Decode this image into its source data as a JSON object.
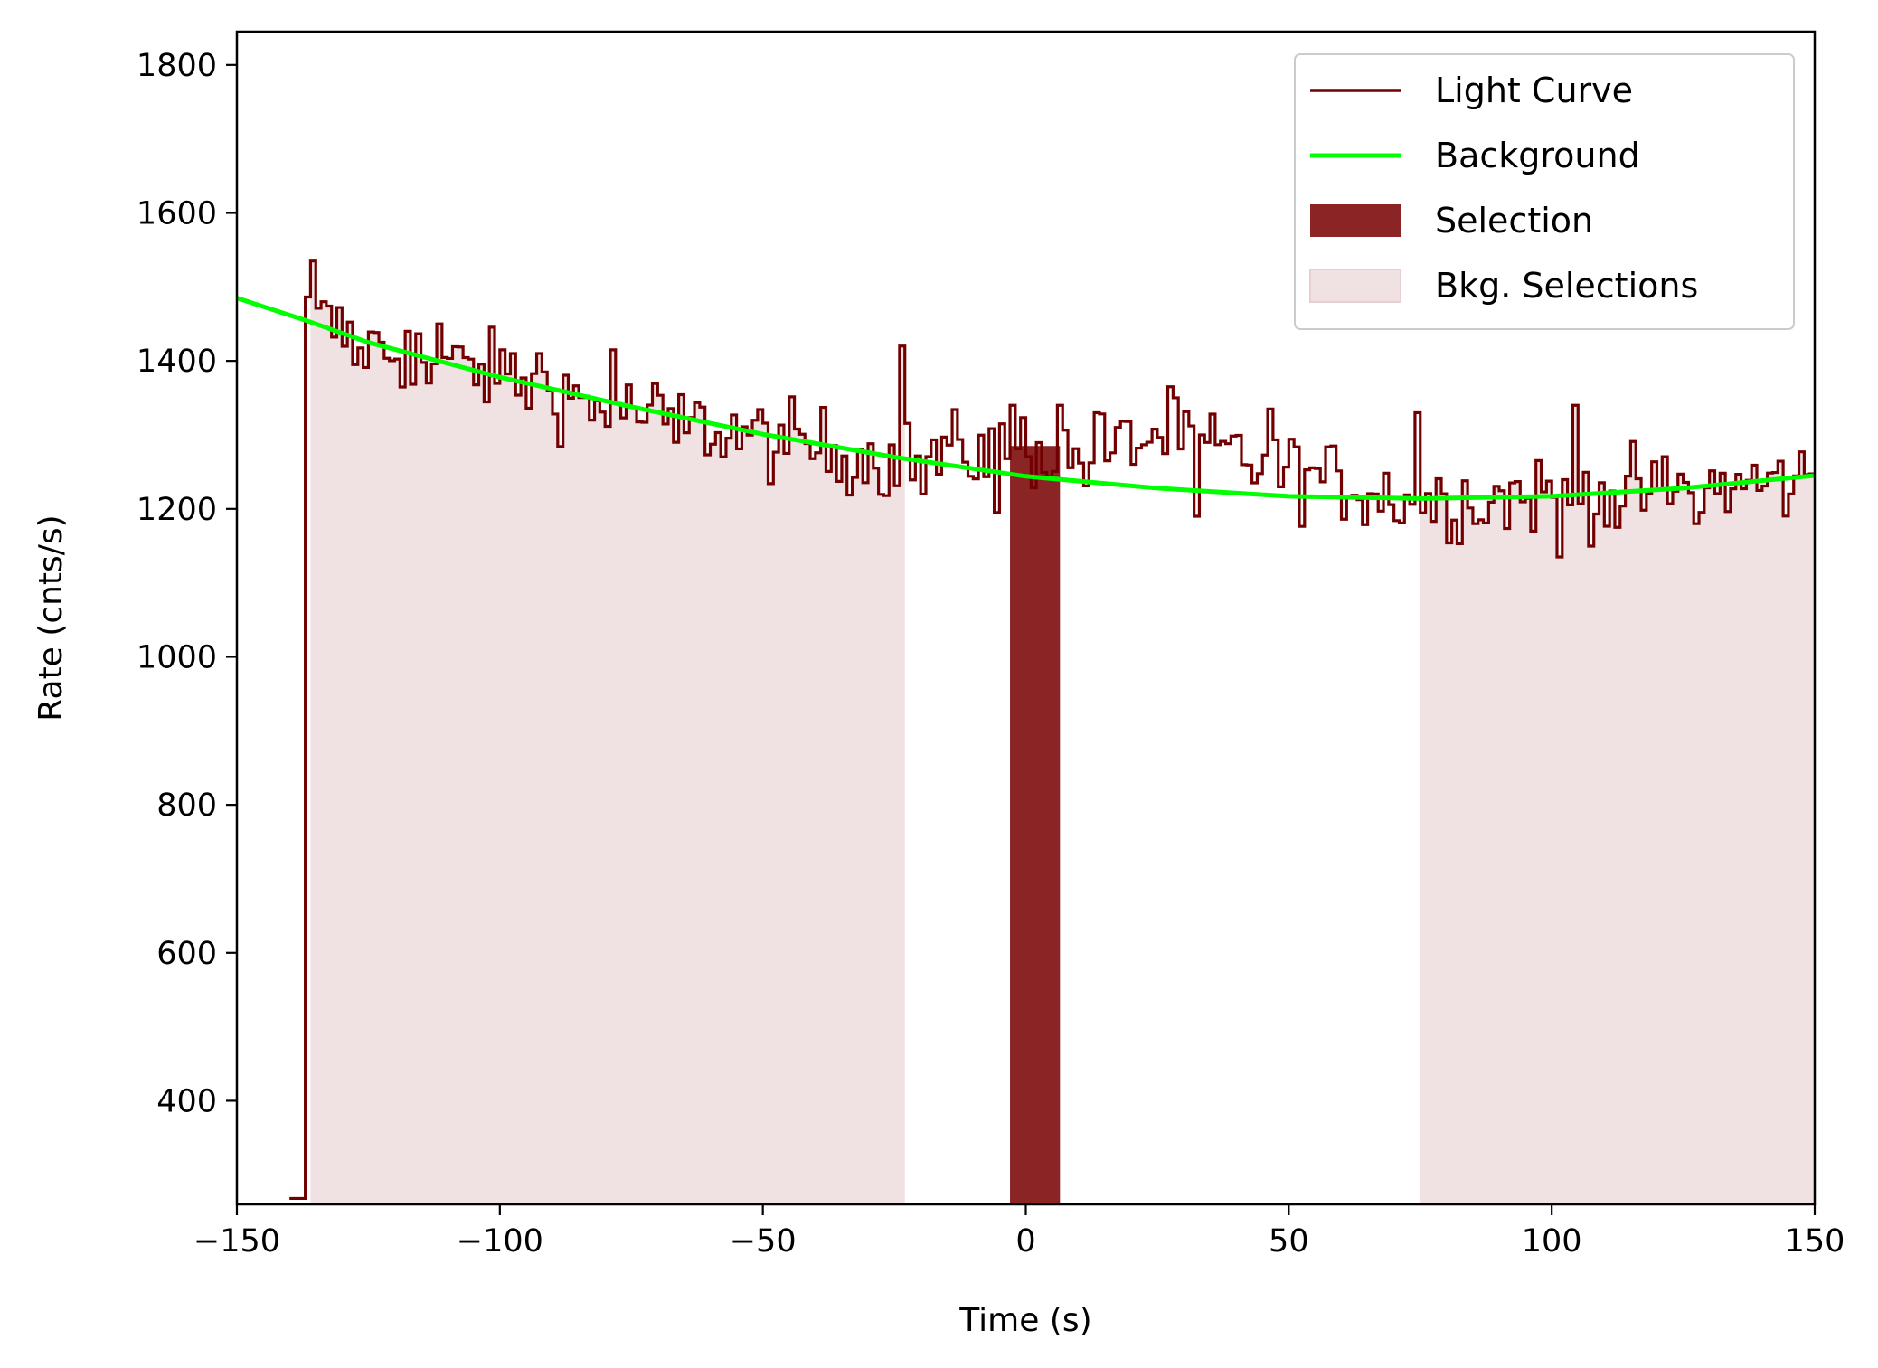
{
  "chart_data": {
    "type": "line",
    "title": "",
    "xlabel": "Time (s)",
    "ylabel": "Rate (cnts/s)",
    "xlim": [
      -150,
      150
    ],
    "ylim": [
      260,
      1845
    ],
    "xticks": [
      {
        "value": -150,
        "label": "−150"
      },
      {
        "value": -100,
        "label": "−100"
      },
      {
        "value": -50,
        "label": "−50"
      },
      {
        "value": 0,
        "label": "0"
      },
      {
        "value": 50,
        "label": "50"
      },
      {
        "value": 100,
        "label": "100"
      },
      {
        "value": 150,
        "label": "150"
      }
    ],
    "yticks": [
      {
        "value": 400,
        "label": "400"
      },
      {
        "value": 600,
        "label": "600"
      },
      {
        "value": 800,
        "label": "800"
      },
      {
        "value": 1000,
        "label": "1000"
      },
      {
        "value": 1200,
        "label": "1200"
      },
      {
        "value": 1400,
        "label": "1400"
      },
      {
        "value": 1600,
        "label": "1600"
      },
      {
        "value": 1800,
        "label": "1800"
      }
    ],
    "grid": false,
    "legend_position": "top-right",
    "legend": [
      {
        "label": "Light Curve",
        "kind": "line",
        "color": "#730000"
      },
      {
        "label": "Background",
        "kind": "line",
        "color": "#00ff00"
      },
      {
        "label": "Selection",
        "kind": "patch",
        "color": "#8b2424"
      },
      {
        "label": "Bkg. Selections",
        "kind": "patch",
        "color": "#f0e2e2"
      }
    ],
    "light_curve": {
      "name": "Light Curve",
      "color": "#730000",
      "bin_width": 1,
      "pre_trigger": {
        "start": -140,
        "end": -137,
        "value": 268
      },
      "start": -137,
      "end": 150,
      "anchors": [
        [
          -137,
          1460
        ],
        [
          -125,
          1420
        ],
        [
          -100,
          1380
        ],
        [
          -75,
          1330
        ],
        [
          -50,
          1295
        ],
        [
          -25,
          1265
        ],
        [
          0,
          1285
        ],
        [
          10,
          1265
        ],
        [
          25,
          1300
        ],
        [
          50,
          1250
        ],
        [
          75,
          1210
        ],
        [
          100,
          1220
        ],
        [
          125,
          1225
        ],
        [
          150,
          1240
        ]
      ],
      "spikes": [
        [
          -136,
          1535
        ],
        [
          -134,
          1480
        ],
        [
          -118,
          1440
        ],
        [
          -112,
          1450
        ],
        [
          -100,
          1415
        ],
        [
          -93,
          1410
        ],
        [
          -79,
          1415
        ],
        [
          -24,
          1420
        ],
        [
          -3,
          1340
        ],
        [
          6,
          1340
        ],
        [
          13,
          1330
        ],
        [
          27,
          1365
        ],
        [
          33,
          1300
        ],
        [
          46,
          1335
        ],
        [
          74,
          1330
        ],
        [
          104,
          1340
        ],
        [
          -128,
          1395
        ],
        [
          -114,
          1370
        ],
        [
          -83,
          1320
        ],
        [
          -67,
          1290
        ],
        [
          -46,
          1275
        ],
        [
          -20,
          1220
        ],
        [
          -6,
          1195
        ],
        [
          32,
          1190
        ],
        [
          85,
          1180
        ],
        [
          101,
          1135
        ],
        [
          112,
          1175
        ],
        [
          127,
          1180
        ]
      ],
      "noise": 28
    },
    "background": {
      "name": "Background",
      "color": "#00ff00",
      "x": [
        -150,
        -137,
        -125,
        -100,
        -75,
        -50,
        -25,
        0,
        25,
        50,
        75,
        100,
        125,
        150
      ],
      "y": [
        1485,
        1455,
        1425,
        1378,
        1338,
        1301,
        1270,
        1244,
        1228,
        1217,
        1214,
        1217,
        1228,
        1245
      ]
    },
    "selection": {
      "name": "Selection",
      "color": "#8b2424",
      "x0": -3,
      "x1": 6.5,
      "y": 1285
    },
    "bkg_selections": {
      "name": "Bkg. Selections",
      "color": "#f0e2e2",
      "ranges": [
        [
          -136,
          -23
        ],
        [
          75,
          150
        ]
      ]
    }
  }
}
